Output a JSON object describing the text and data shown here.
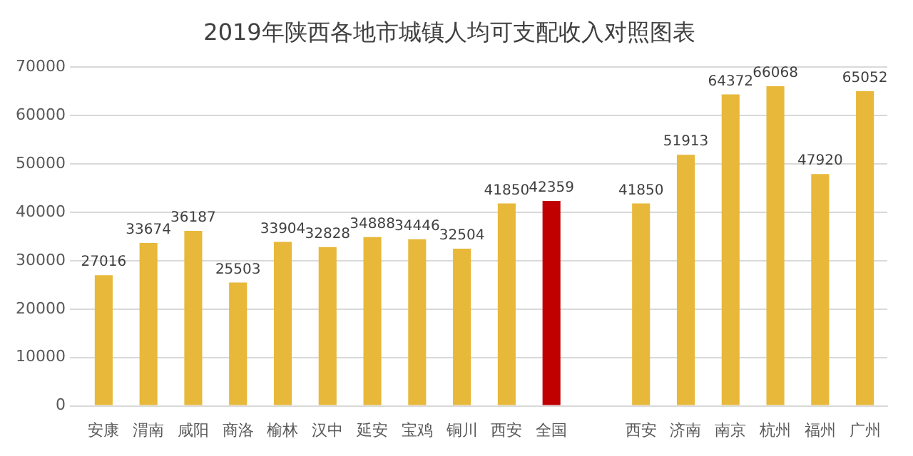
{
  "chart_data": {
    "type": "bar",
    "title": "2019年陕西各地市城镇人均可支配收入对照图表",
    "categories": [
      "安康",
      "渭南",
      "咸阳",
      "商洛",
      "榆林",
      "汉中",
      "延安",
      "宝鸡",
      "铜川",
      "西安",
      "全国",
      null,
      "西安",
      "济南",
      "南京",
      "杭州",
      "福州",
      "广州"
    ],
    "values": [
      27016,
      33674,
      36187,
      25503,
      33904,
      32828,
      34888,
      34446,
      32504,
      41850,
      42359,
      null,
      41850,
      51913,
      64372,
      66068,
      47920,
      65052
    ],
    "colors": [
      "#e8b83a",
      "#e8b83a",
      "#e8b83a",
      "#e8b83a",
      "#e8b83a",
      "#e8b83a",
      "#e8b83a",
      "#e8b83a",
      "#e8b83a",
      "#e8b83a",
      "#c00000",
      "#e8b83a",
      "#e8b83a",
      "#e8b83a",
      "#e8b83a",
      "#e8b83a",
      "#e8b83a",
      "#e8b83a"
    ],
    "ylim": [
      0,
      70000
    ],
    "yticks": [
      0,
      10000,
      20000,
      30000,
      40000,
      50000,
      60000,
      70000
    ],
    "grid": "y",
    "data_labels": true
  }
}
